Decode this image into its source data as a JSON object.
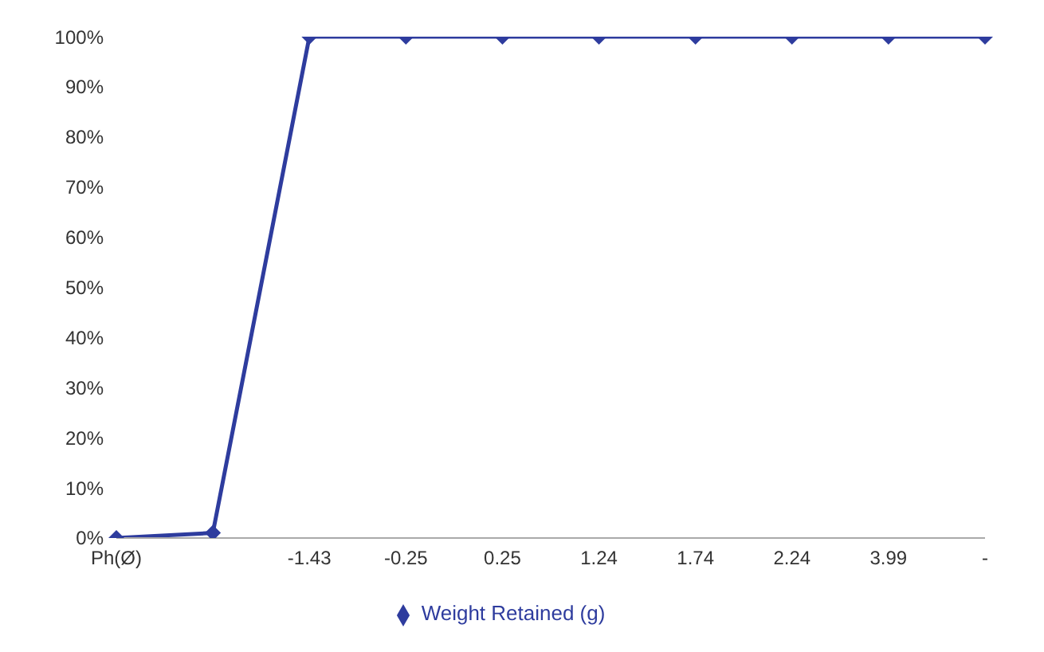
{
  "chart_data": {
    "type": "line",
    "categories": [
      "Ph(Ø)",
      null,
      "-1.43",
      "-0.25",
      "0.25",
      "1.24",
      "1.74",
      "2.24",
      "3.99",
      "-"
    ],
    "series": [
      {
        "name": "Weight Retained (g)",
        "color": "#2e3c9e",
        "values": [
          0,
          1,
          100,
          100,
          100,
          100,
          100,
          100,
          100,
          100
        ]
      }
    ],
    "ylim": [
      0,
      100
    ],
    "yticks": [
      {
        "value": 0,
        "label": "0%"
      },
      {
        "value": 10,
        "label": "10%"
      },
      {
        "value": 20,
        "label": "20%"
      },
      {
        "value": 30,
        "label": "30%"
      },
      {
        "value": 40,
        "label": "40%"
      },
      {
        "value": 50,
        "label": "50%"
      },
      {
        "value": 60,
        "label": "60%"
      },
      {
        "value": 70,
        "label": "70%"
      },
      {
        "value": 80,
        "label": "80%"
      },
      {
        "value": 90,
        "label": "90%"
      },
      {
        "value": 100,
        "label": "100%"
      }
    ],
    "marker": "diamond",
    "legend": "bottom",
    "grid": false
  }
}
